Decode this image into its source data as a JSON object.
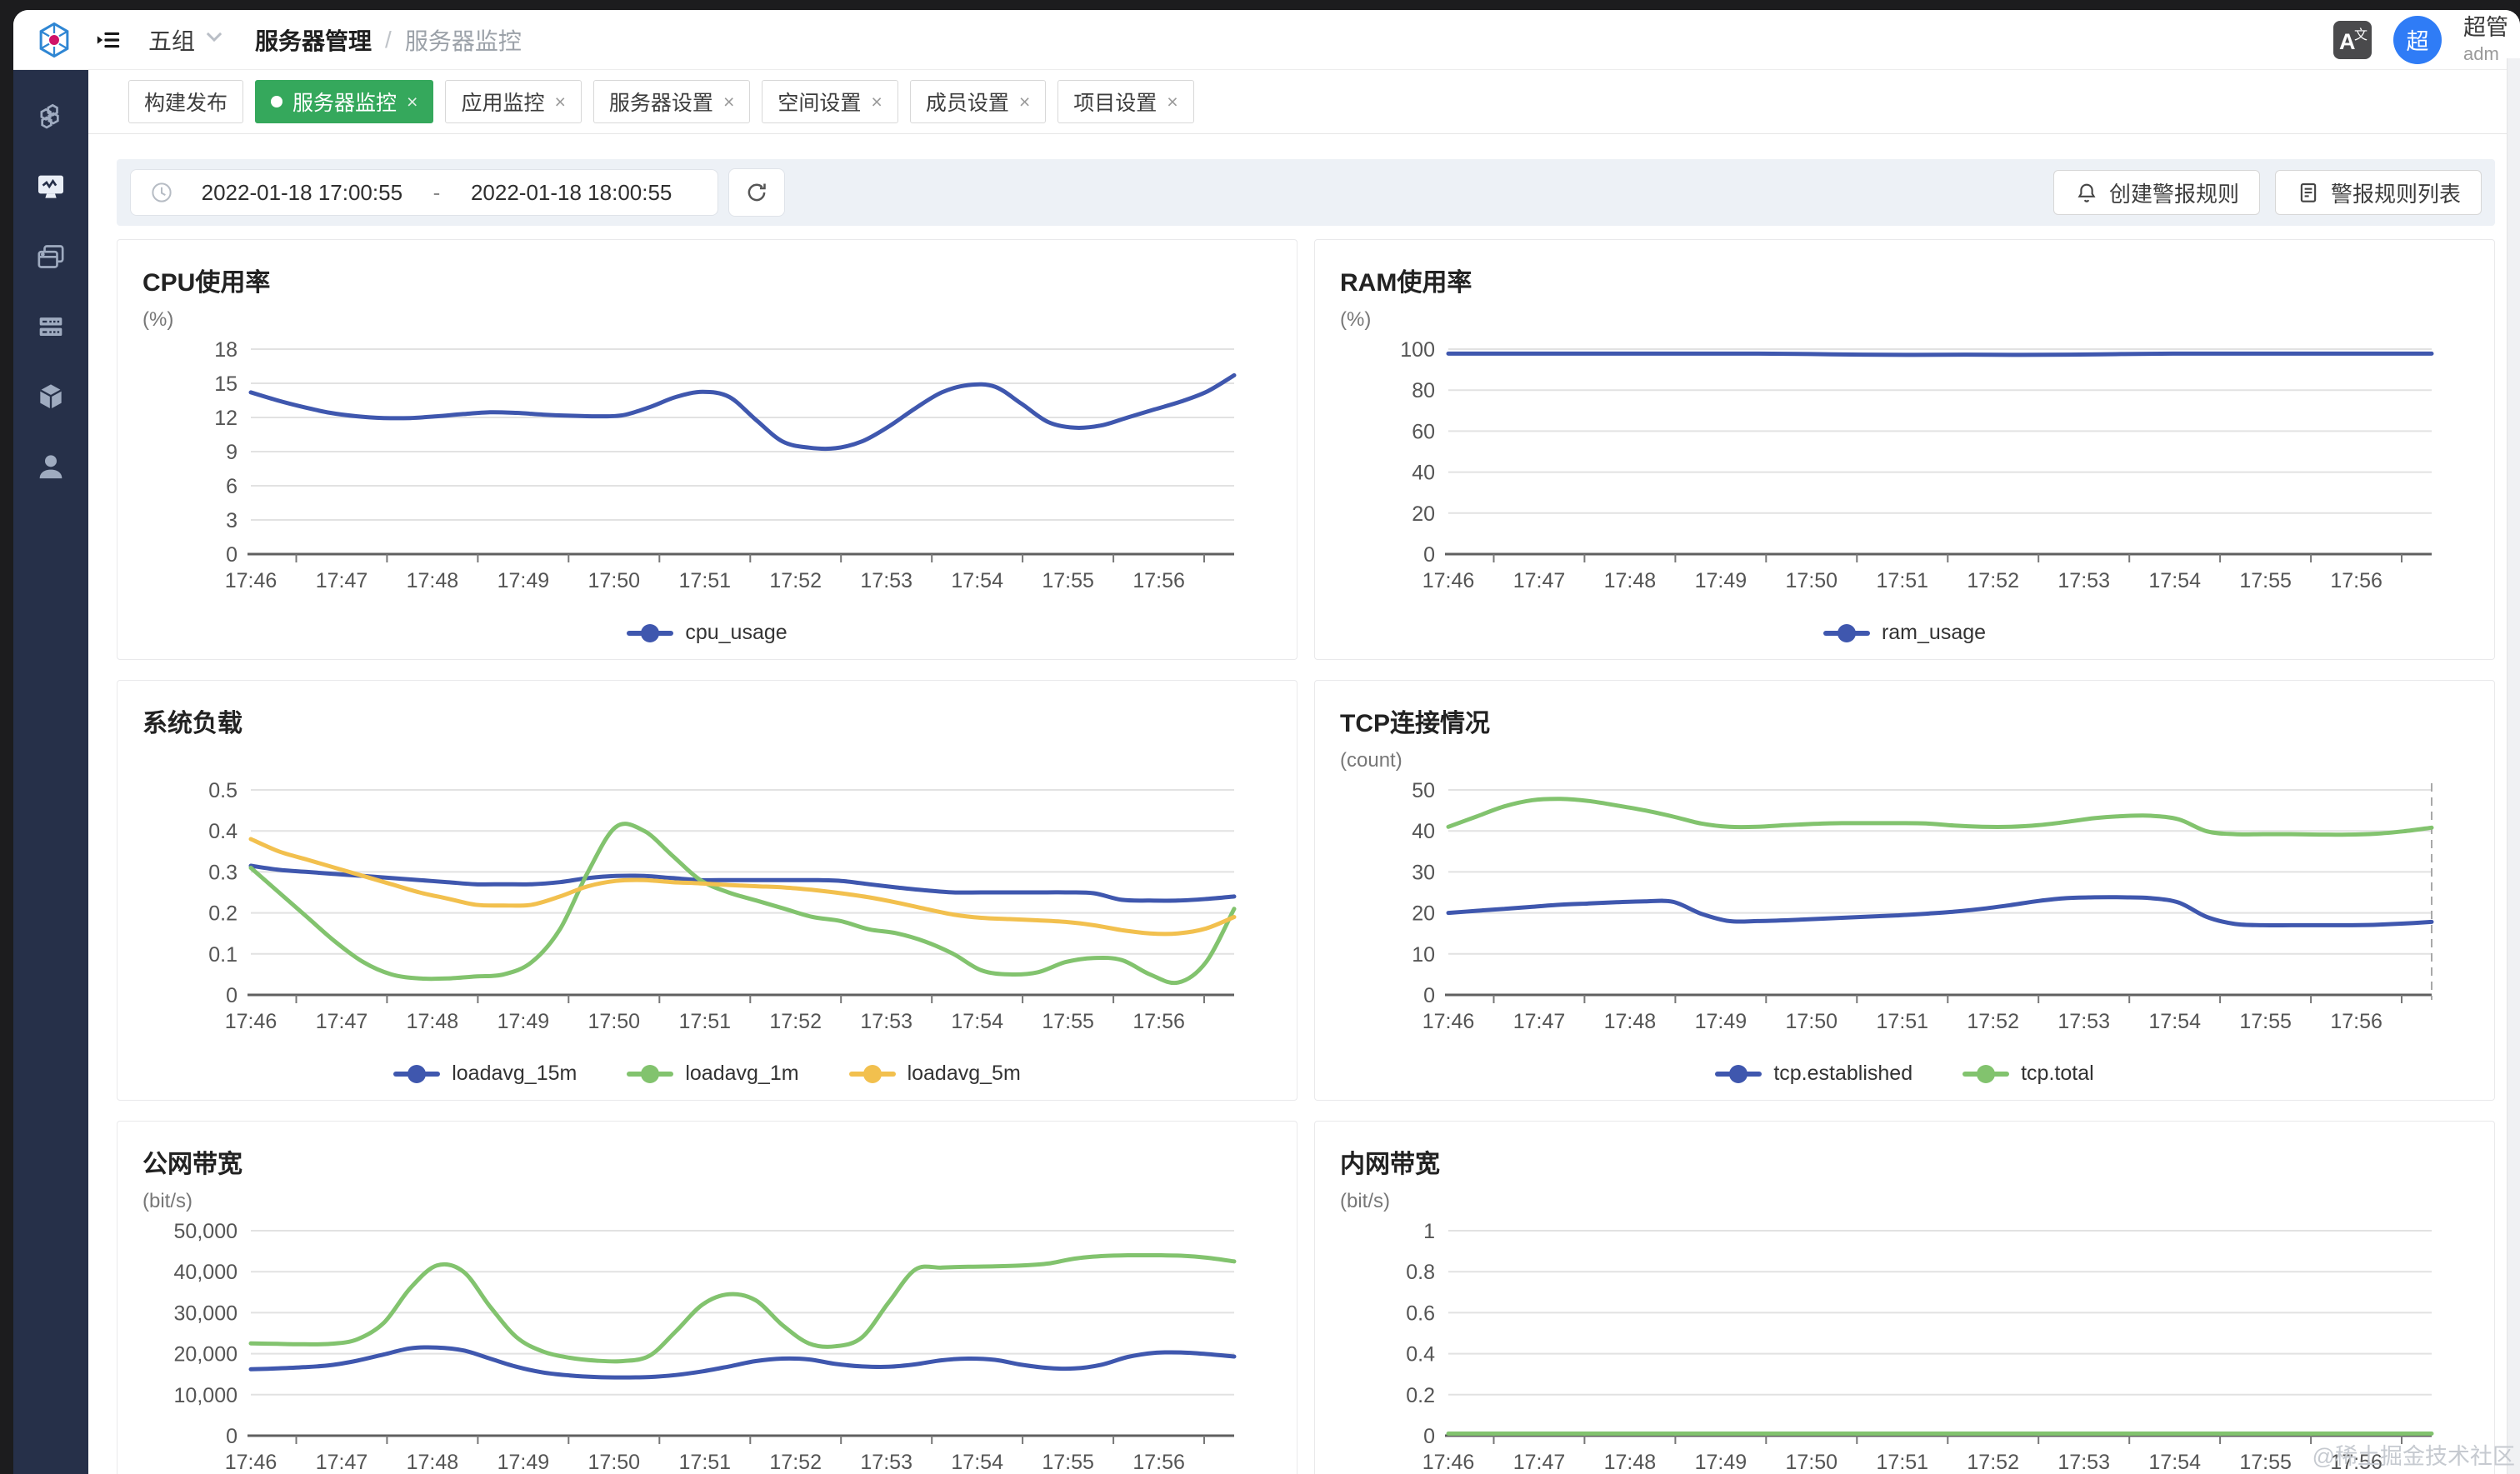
{
  "header": {
    "group_label": "五组",
    "breadcrumb_parent": "服务器管理",
    "breadcrumb_separator": "/",
    "breadcrumb_current": "服务器监控",
    "language_icon_primary": "A",
    "language_icon_secondary": "文",
    "avatar_text": "超",
    "user_name": "超管",
    "user_role": "adm"
  },
  "sidebar": {
    "items": [
      {
        "icon": "cluster-icon",
        "active": false
      },
      {
        "icon": "monitor-icon",
        "active": true
      },
      {
        "icon": "apps-icon",
        "active": false
      },
      {
        "icon": "server-icon",
        "active": false
      },
      {
        "icon": "cube-icon",
        "active": false
      },
      {
        "icon": "user-icon",
        "active": false
      }
    ]
  },
  "tabs": [
    {
      "label": "构建发布",
      "closable": false,
      "active": false
    },
    {
      "label": "服务器监控",
      "closable": true,
      "active": true
    },
    {
      "label": "应用监控",
      "closable": true,
      "active": false
    },
    {
      "label": "服务器设置",
      "closable": true,
      "active": false
    },
    {
      "label": "空间设置",
      "closable": true,
      "active": false
    },
    {
      "label": "成员设置",
      "closable": true,
      "active": false
    },
    {
      "label": "项目设置",
      "closable": true,
      "active": false
    }
  ],
  "toolbar": {
    "range_start": "2022-01-18 17:00:55",
    "range_separator": "-",
    "range_end": "2022-01-18 18:00:55",
    "create_alert_label": "创建警报规则",
    "alert_list_label": "警报规则列表"
  },
  "colors": {
    "blue": "#3f57ae",
    "green": "#82c36e",
    "yellow": "#f2c04e",
    "active_tab": "#35a85c",
    "avatar": "#2f7cf6"
  },
  "x_labels": [
    "17:46",
    "17:47",
    "17:48",
    "17:49",
    "17:50",
    "17:51",
    "17:52",
    "17:53",
    "17:54",
    "17:55",
    "17:56"
  ],
  "chart_data": [
    {
      "id": "cpu",
      "type": "line",
      "title": "CPU使用率",
      "unit": "(%)",
      "ymax": 18,
      "ytick_labels": [
        "18",
        "15",
        "12",
        "9",
        "6",
        "3",
        "0"
      ],
      "legend": [
        {
          "label": "cpu_usage",
          "color": "blue"
        }
      ],
      "series": [
        {
          "name": "cpu_usage",
          "color": "blue",
          "values": [
            14.2,
            13.5,
            12.9,
            12.4,
            12.1,
            11.95,
            11.95,
            12.1,
            12.3,
            12.45,
            12.4,
            12.25,
            12.15,
            12.1,
            12.2,
            12.9,
            13.8,
            14.25,
            13.8,
            11.8,
            9.9,
            9.35,
            9.3,
            9.9,
            11.2,
            12.8,
            14.2,
            14.85,
            14.7,
            13.2,
            11.6,
            11.1,
            11.3,
            12.0,
            12.7,
            13.4,
            14.3,
            15.7
          ]
        }
      ]
    },
    {
      "id": "ram",
      "type": "line",
      "title": "RAM使用率",
      "unit": "(%)",
      "ymax": 100,
      "ytick_labels": [
        "100",
        "80",
        "60",
        "40",
        "20",
        "0"
      ],
      "legend": [
        {
          "label": "ram_usage",
          "color": "blue"
        }
      ],
      "series": [
        {
          "name": "ram_usage",
          "color": "blue",
          "values": [
            97.8,
            97.8,
            97.8,
            97.8,
            97.8,
            97.8,
            97.8,
            97.6,
            97.3,
            97.2,
            97.3,
            97.2,
            97.3,
            97.6,
            97.8,
            97.8,
            97.8,
            97.8,
            97.8,
            97.8
          ]
        }
      ]
    },
    {
      "id": "load",
      "type": "line",
      "title": "系统负载",
      "unit": "",
      "ymax": 0.5,
      "ytick_labels": [
        "0.5",
        "0.4",
        "0.3",
        "0.2",
        "0.1",
        "0"
      ],
      "legend": [
        {
          "label": "loadavg_15m",
          "color": "blue"
        },
        {
          "label": "loadavg_1m",
          "color": "green"
        },
        {
          "label": "loadavg_5m",
          "color": "yellow"
        }
      ],
      "series": [
        {
          "name": "loadavg_15m",
          "color": "blue",
          "values": [
            0.315,
            0.305,
            0.3,
            0.295,
            0.29,
            0.285,
            0.28,
            0.275,
            0.27,
            0.27,
            0.27,
            0.275,
            0.285,
            0.29,
            0.29,
            0.285,
            0.28,
            0.28,
            0.28,
            0.28,
            0.28,
            0.278,
            0.27,
            0.262,
            0.255,
            0.25,
            0.25,
            0.25,
            0.25,
            0.25,
            0.248,
            0.232,
            0.23,
            0.23,
            0.234,
            0.24
          ]
        },
        {
          "name": "loadavg_1m",
          "color": "green",
          "values": [
            0.31,
            0.25,
            0.19,
            0.13,
            0.08,
            0.05,
            0.04,
            0.04,
            0.045,
            0.05,
            0.08,
            0.16,
            0.3,
            0.41,
            0.4,
            0.34,
            0.28,
            0.25,
            0.23,
            0.21,
            0.19,
            0.18,
            0.16,
            0.15,
            0.13,
            0.1,
            0.06,
            0.05,
            0.055,
            0.08,
            0.09,
            0.085,
            0.05,
            0.03,
            0.08,
            0.21
          ]
        },
        {
          "name": "loadavg_5m",
          "color": "yellow",
          "values": [
            0.38,
            0.35,
            0.33,
            0.31,
            0.29,
            0.27,
            0.25,
            0.235,
            0.22,
            0.218,
            0.22,
            0.24,
            0.265,
            0.278,
            0.28,
            0.275,
            0.272,
            0.268,
            0.265,
            0.262,
            0.256,
            0.248,
            0.238,
            0.225,
            0.21,
            0.196,
            0.188,
            0.185,
            0.182,
            0.178,
            0.17,
            0.158,
            0.15,
            0.15,
            0.162,
            0.19
          ]
        }
      ]
    },
    {
      "id": "tcp",
      "type": "line",
      "title": "TCP连接情况",
      "unit": "(count)",
      "ymax": 50,
      "ytick_labels": [
        "50",
        "40",
        "30",
        "20",
        "10",
        "0"
      ],
      "pointer_line": true,
      "legend": [
        {
          "label": "tcp.established",
          "color": "blue"
        },
        {
          "label": "tcp.total",
          "color": "green"
        }
      ],
      "series": [
        {
          "name": "tcp.established",
          "color": "blue",
          "values": [
            20,
            20.5,
            21,
            21.5,
            22,
            22.3,
            22.6,
            22.8,
            22.7,
            19.8,
            18,
            18,
            18.2,
            18.5,
            18.8,
            19.1,
            19.4,
            19.8,
            20.3,
            21,
            21.9,
            22.9,
            23.6,
            23.8,
            23.8,
            23.6,
            22.5,
            19,
            17.3,
            17,
            17,
            17,
            17,
            17.1,
            17.4,
            17.8
          ]
        },
        {
          "name": "tcp.total",
          "color": "green",
          "values": [
            41,
            43.5,
            46,
            47.5,
            47.8,
            47.3,
            46.2,
            45,
            43.5,
            41.8,
            41,
            41,
            41.4,
            41.7,
            41.9,
            41.9,
            41.9,
            41.8,
            41.3,
            41,
            41,
            41.4,
            42.2,
            43.1,
            43.6,
            43.7,
            42.8,
            39.9,
            39.2,
            39.2,
            39.2,
            39.1,
            39.1,
            39.3,
            39.9,
            40.8
          ]
        }
      ]
    },
    {
      "id": "wan",
      "type": "line",
      "title": "公网带宽",
      "unit": "(bit/s)",
      "ymax": 50000,
      "ytick_labels": [
        "50,000",
        "40,000",
        "30,000",
        "20,000",
        "10,000",
        "0"
      ],
      "legend": [],
      "series": [
        {
          "name": "",
          "color": "green",
          "values": [
            22500,
            22400,
            22300,
            22400,
            23500,
            27500,
            36000,
            41500,
            40000,
            31500,
            24000,
            20500,
            19000,
            18300,
            18200,
            19500,
            25500,
            32000,
            34500,
            33000,
            27000,
            22500,
            21800,
            24000,
            32500,
            40500,
            41000,
            41200,
            41300,
            41500,
            42000,
            43200,
            43800,
            44000,
            44000,
            43900,
            43400,
            42500
          ]
        },
        {
          "name": "",
          "color": "blue",
          "values": [
            16200,
            16400,
            16700,
            17200,
            18300,
            19800,
            21300,
            21500,
            20800,
            18800,
            16800,
            15400,
            14700,
            14300,
            14200,
            14300,
            14800,
            15700,
            16900,
            18200,
            18800,
            18600,
            17500,
            16900,
            16800,
            17400,
            18400,
            18800,
            18500,
            17300,
            16500,
            16400,
            17300,
            19200,
            20200,
            20300,
            19900,
            19300
          ]
        }
      ]
    },
    {
      "id": "lan",
      "type": "line",
      "title": "内网带宽",
      "unit": "(bit/s)",
      "ymax": 1,
      "ytick_labels": [
        "1",
        "0.8",
        "0.6",
        "0.4",
        "0.2",
        "0"
      ],
      "legend": [],
      "series": [
        {
          "name": "",
          "color": "green",
          "values": [
            0,
            0,
            0,
            0,
            0,
            0,
            0,
            0,
            0,
            0,
            0,
            0
          ]
        }
      ]
    }
  ],
  "watermark": "@稀土掘金技术社区"
}
